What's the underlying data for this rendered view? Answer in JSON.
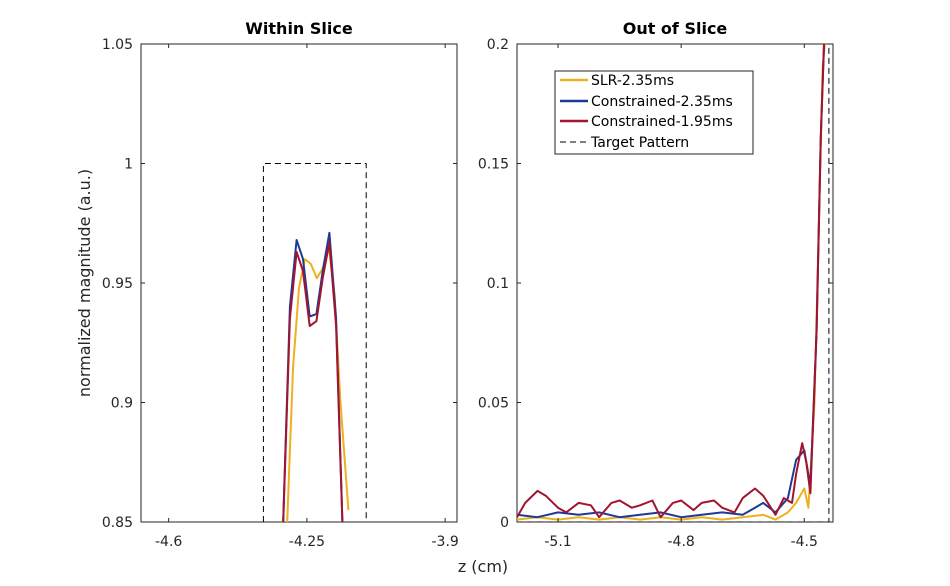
{
  "figure": {
    "shared_xlabel": "z (cm)",
    "shared_ylabel": "normalized magnitude (a.u.)"
  },
  "colors": {
    "slr": "#EDB120",
    "constrained_235": "#1F3A93",
    "constrained_195": "#A2142F",
    "target": "#000000"
  },
  "chart_data": [
    {
      "type": "line",
      "title": "Within Slice",
      "xlabel": "",
      "ylabel": "normalized magnitude (a.u.)",
      "xlim": [
        -4.67,
        -3.87
      ],
      "ylim": [
        0.85,
        1.05
      ],
      "xticks": [
        -4.6,
        -4.25,
        -3.9
      ],
      "xtick_labels": [
        "-4.6",
        "-4.25",
        "-3.9"
      ],
      "yticks": [
        0.85,
        0.9,
        0.95,
        1,
        1.05
      ],
      "ytick_labels": [
        "0.85",
        "0.9",
        "0.95",
        "1",
        "1.05"
      ],
      "series": [
        {
          "name": "SLR-2.35ms",
          "color": "#EDB120",
          "x": [
            -4.3,
            -4.285,
            -4.27,
            -4.255,
            -4.24,
            -4.225,
            -4.21,
            -4.195,
            -4.18,
            -4.165,
            -4.145
          ],
          "y": [
            0.85,
            0.915,
            0.948,
            0.96,
            0.958,
            0.952,
            0.956,
            0.966,
            0.945,
            0.9,
            0.855
          ]
        },
        {
          "name": "Constrained-2.35ms",
          "color": "#1F3A93",
          "x": [
            -4.31,
            -4.293,
            -4.276,
            -4.26,
            -4.243,
            -4.226,
            -4.21,
            -4.193,
            -4.176,
            -4.16
          ],
          "y": [
            0.85,
            0.94,
            0.968,
            0.96,
            0.936,
            0.937,
            0.955,
            0.971,
            0.935,
            0.85
          ]
        },
        {
          "name": "Constrained-1.95ms",
          "color": "#A2142F",
          "x": [
            -4.31,
            -4.293,
            -4.276,
            -4.26,
            -4.243,
            -4.226,
            -4.21,
            -4.193,
            -4.176,
            -4.16
          ],
          "y": [
            0.85,
            0.935,
            0.963,
            0.955,
            0.932,
            0.934,
            0.952,
            0.967,
            0.932,
            0.85
          ]
        },
        {
          "name": "Target Pattern",
          "color": "#000000",
          "dashed": true,
          "x": [
            -4.36,
            -4.36,
            -4.1,
            -4.1
          ],
          "y": [
            0.85,
            1,
            1,
            0.85
          ]
        }
      ]
    },
    {
      "type": "line",
      "title": "Out of Slice",
      "xlabel": "",
      "ylabel": "",
      "xlim": [
        -5.2,
        -4.43
      ],
      "ylim": [
        0,
        0.2
      ],
      "xticks": [
        -5.1,
        -4.8,
        -4.5
      ],
      "xtick_labels": [
        "-5.1",
        "-4.8",
        "-4.5"
      ],
      "yticks": [
        0,
        0.05,
        0.1,
        0.15,
        0.2
      ],
      "ytick_labels": [
        "0",
        "0.05",
        "0.1",
        "0.15",
        "0.2"
      ],
      "legend": {
        "position": "top-left",
        "entries": [
          "SLR-2.35ms",
          "Constrained-2.35ms",
          "Constrained-1.95ms",
          "Target Pattern"
        ]
      },
      "series": [
        {
          "name": "SLR-2.35ms",
          "color": "#EDB120",
          "x": [
            -5.2,
            -5.15,
            -5.1,
            -5.05,
            -5.0,
            -4.95,
            -4.9,
            -4.85,
            -4.8,
            -4.75,
            -4.7,
            -4.65,
            -4.6,
            -4.57,
            -4.54,
            -4.52,
            -4.5,
            -4.49,
            -4.475,
            -4.465,
            -4.455,
            -4.45
          ],
          "y": [
            0.001,
            0.002,
            0.001,
            0.002,
            0.001,
            0.002,
            0.001,
            0.002,
            0.001,
            0.002,
            0.001,
            0.002,
            0.003,
            0.001,
            0.004,
            0.008,
            0.014,
            0.006,
            0.05,
            0.12,
            0.19,
            0.2
          ]
        },
        {
          "name": "Constrained-2.35ms",
          "color": "#1F3A93",
          "x": [
            -5.2,
            -5.15,
            -5.1,
            -5.05,
            -5.0,
            -4.95,
            -4.9,
            -4.85,
            -4.8,
            -4.75,
            -4.7,
            -4.65,
            -4.62,
            -4.6,
            -4.57,
            -4.54,
            -4.52,
            -4.5,
            -4.485,
            -4.47,
            -4.46,
            -4.452
          ],
          "y": [
            0.003,
            0.002,
            0.004,
            0.003,
            0.004,
            0.002,
            0.003,
            0.004,
            0.002,
            0.003,
            0.004,
            0.003,
            0.006,
            0.008,
            0.004,
            0.01,
            0.026,
            0.03,
            0.015,
            0.08,
            0.16,
            0.2
          ]
        },
        {
          "name": "Constrained-1.95ms",
          "color": "#A2142F",
          "x": [
            -5.2,
            -5.18,
            -5.15,
            -5.13,
            -5.1,
            -5.08,
            -5.05,
            -5.02,
            -5.0,
            -4.97,
            -4.95,
            -4.92,
            -4.9,
            -4.87,
            -4.85,
            -4.82,
            -4.8,
            -4.77,
            -4.75,
            -4.72,
            -4.7,
            -4.67,
            -4.65,
            -4.62,
            -4.6,
            -4.57,
            -4.55,
            -4.53,
            -4.52,
            -4.505,
            -4.495,
            -4.485,
            -4.47,
            -4.46,
            -4.452
          ],
          "y": [
            0.002,
            0.008,
            0.013,
            0.011,
            0.006,
            0.004,
            0.008,
            0.007,
            0.002,
            0.008,
            0.009,
            0.006,
            0.007,
            0.009,
            0.002,
            0.008,
            0.009,
            0.005,
            0.008,
            0.009,
            0.006,
            0.004,
            0.01,
            0.014,
            0.011,
            0.003,
            0.01,
            0.008,
            0.02,
            0.033,
            0.025,
            0.012,
            0.08,
            0.16,
            0.2
          ]
        },
        {
          "name": "Target Pattern",
          "color": "#000000",
          "dashed": true,
          "x": [
            -5.2,
            -4.44,
            -4.44
          ],
          "y": [
            0,
            0,
            0.2
          ]
        }
      ]
    }
  ]
}
